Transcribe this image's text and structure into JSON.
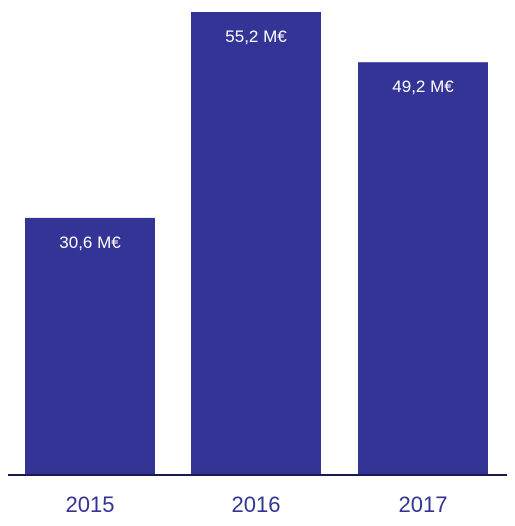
{
  "chart_data": {
    "type": "bar",
    "categories": [
      "2015",
      "2016",
      "2017"
    ],
    "values": [
      30.6,
      55.2,
      49.2
    ],
    "data_labels": [
      "30,6 M€",
      "55,2 M€",
      "49,2 M€"
    ],
    "title": "",
    "xlabel": "",
    "ylabel": "",
    "ylim": [
      0,
      55.2
    ],
    "grid": false,
    "legend": "none"
  },
  "colors": {
    "bar": "#343496",
    "axis": "#1a1a4e",
    "bar_label": "#ffffff",
    "tick_label": "#343496"
  }
}
